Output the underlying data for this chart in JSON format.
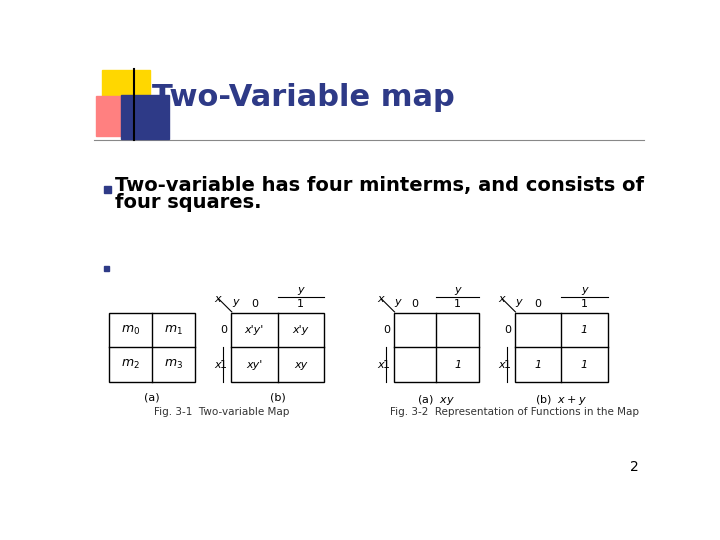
{
  "title": "Two-Variable map",
  "title_color": "#2E3A87",
  "title_fontsize": 22,
  "bullet_color": "#2E3A87",
  "bullet_text1": "Two-variable has four minterms, and consists of",
  "bullet_text2": "four squares.",
  "bullet_fontsize": 14,
  "bg_color": "#ffffff",
  "fig31_caption": "Fig. 3-1  Two-variable Map",
  "fig32_caption": "Fig. 3-2  Representation of Functions in the Map",
  "page_num": "2",
  "decor_yellow": "#FFD700",
  "decor_red": "#FF8080",
  "decor_blue": "#2E3A87",
  "line_color": "#888888",
  "black": "#000000"
}
